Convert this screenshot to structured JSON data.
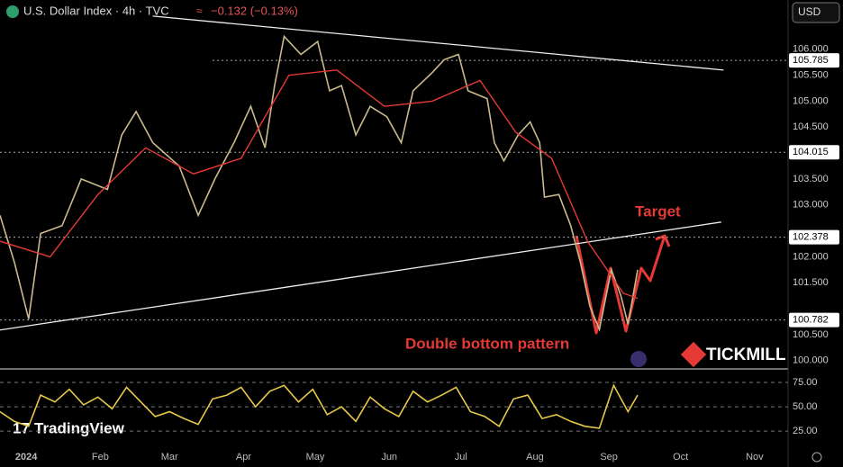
{
  "header": {
    "title": "U.S. Dollar Index · 4h · TVC",
    "change": "−0.132 (−0.13%)",
    "currency": "USD"
  },
  "brand": {
    "broker": "TICKMILL",
    "platform": "TradingView"
  },
  "chart_data": [
    {
      "type": "line",
      "xlim": [
        -11,
        319
      ],
      "ylim": [
        99.84,
        106.95
      ],
      "xticks": [
        {
          "value": 0,
          "label": "2024"
        },
        {
          "value": 31,
          "label": "Feb"
        },
        {
          "value": 60,
          "label": "Mar"
        },
        {
          "value": 91,
          "label": "Apr"
        },
        {
          "value": 121,
          "label": "May"
        },
        {
          "value": 152,
          "label": "Jun"
        },
        {
          "value": 182,
          "label": "Jul"
        },
        {
          "value": 213,
          "label": "Aug"
        },
        {
          "value": 244,
          "label": "Sep"
        },
        {
          "value": 274,
          "label": "Oct"
        },
        {
          "value": 305,
          "label": "Nov"
        }
      ],
      "yticks": [
        {
          "value": 100,
          "label": "100.000"
        },
        {
          "value": 100.5,
          "label": "100.500"
        },
        {
          "value": 101.5,
          "label": "101.500"
        },
        {
          "value": 102,
          "label": "102.000"
        },
        {
          "value": 103,
          "label": "103.000"
        },
        {
          "value": 103.5,
          "label": "103.500"
        },
        {
          "value": 104.5,
          "label": "104.500"
        },
        {
          "value": 105,
          "label": "105.000"
        },
        {
          "value": 105.5,
          "label": "105.500"
        },
        {
          "value": 106,
          "label": "106.000"
        }
      ],
      "levels": [
        105.785,
        104.015,
        102.378,
        100.782
      ],
      "series": [
        {
          "color": "#c9b98c",
          "x": [
            -11,
            -5,
            1,
            6,
            15,
            23,
            34,
            40,
            46,
            53,
            64,
            72,
            79,
            87,
            94,
            100,
            104,
            108,
            115,
            122,
            127,
            132,
            138,
            144,
            151,
            157,
            162,
            170,
            175,
            181,
            185,
            193,
            196,
            200,
            206,
            211,
            215,
            217,
            223,
            228,
            232,
            236,
            240,
            245,
            249,
            252,
            256
          ],
          "values": [
            102.8,
            101.9,
            100.8,
            102.45,
            102.6,
            103.5,
            103.3,
            104.35,
            104.8,
            104.2,
            103.75,
            102.8,
            103.5,
            104.2,
            104.9,
            104.1,
            105.3,
            106.25,
            105.9,
            106.15,
            105.2,
            105.3,
            104.35,
            104.9,
            104.7,
            104.2,
            105.2,
            105.55,
            105.8,
            105.9,
            105.2,
            105.05,
            104.2,
            103.85,
            104.35,
            104.6,
            104.2,
            103.15,
            103.2,
            102.6,
            101.9,
            101.05,
            100.6,
            101.75,
            101.25,
            100.7,
            101.75
          ]
        },
        {
          "color": "#e53935",
          "x": [
            -11,
            10,
            30,
            50,
            70,
            90,
            110,
            130,
            150,
            170,
            190,
            205,
            220,
            235,
            250,
            256
          ],
          "values": [
            102.3,
            102.0,
            103.2,
            104.1,
            103.6,
            103.9,
            105.5,
            105.6,
            104.9,
            105.0,
            105.4,
            104.4,
            103.9,
            102.3,
            101.3,
            101.2
          ]
        }
      ],
      "trendlines": [
        {
          "x": [
            53,
            292
          ],
          "values": [
            106.64,
            105.6
          ]
        },
        {
          "x": [
            -11,
            291
          ],
          "values": [
            100.59,
            102.67
          ]
        }
      ],
      "annotations": [
        "Target",
        "Double bottom pattern"
      ]
    },
    {
      "type": "line",
      "xlim": [
        -11,
        319
      ],
      "ylim": [
        15,
        87
      ],
      "yticks": [
        {
          "value": 75,
          "label": "75.00"
        },
        {
          "value": 50,
          "label": "50.00"
        },
        {
          "value": 25,
          "label": "25.00"
        }
      ],
      "series": [
        {
          "color": "#e6c84a",
          "x": [
            -11,
            -5,
            1,
            6,
            12,
            18,
            24,
            30,
            36,
            42,
            48,
            54,
            60,
            66,
            72,
            78,
            84,
            90,
            96,
            102,
            108,
            114,
            120,
            126,
            132,
            138,
            144,
            150,
            156,
            162,
            168,
            174,
            180,
            186,
            192,
            198,
            204,
            210,
            216,
            222,
            228,
            234,
            240,
            246,
            252,
            256
          ],
          "values": [
            45,
            35,
            30,
            62,
            55,
            68,
            52,
            60,
            48,
            70,
            55,
            40,
            45,
            38,
            32,
            58,
            62,
            70,
            50,
            66,
            72,
            55,
            68,
            42,
            50,
            35,
            60,
            48,
            40,
            66,
            55,
            62,
            70,
            45,
            40,
            30,
            58,
            62,
            38,
            42,
            35,
            30,
            28,
            72,
            45,
            62
          ]
        }
      ]
    }
  ]
}
